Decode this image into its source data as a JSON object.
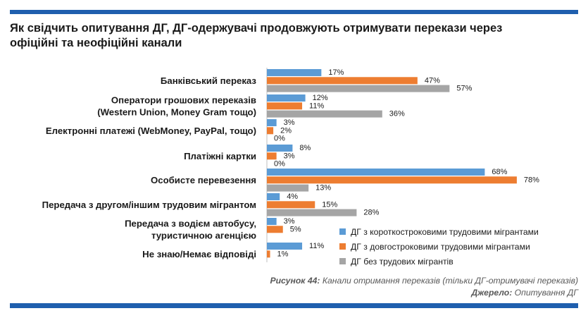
{
  "title": "Як свідчить опитування ДГ, ДГ-одержувачі продовжують отримувати перекази через офіційні та неофіційні канали",
  "caption": {
    "label": "Рисунок 44:",
    "text": "Канали отримання переказів (тільки ДГ-отримувачі переказів)"
  },
  "source": {
    "label": "Джерело:",
    "text": "Опитування ДГ"
  },
  "colors": {
    "short": "#5b9bd5",
    "long": "#ed7d31",
    "none": "#a5a5a5",
    "rule": "#1f5fae"
  },
  "chart_data": {
    "type": "bar",
    "orientation": "horizontal",
    "grid": false,
    "legend_position": "bottom-right",
    "xlim": [
      0,
      100
    ],
    "categories": [
      [
        "Банківський переказ"
      ],
      [
        "Оператори грошових переказів",
        "(Western Union, Money Gram тощо)"
      ],
      [
        "Електронні платежі (WebMoney, PayPal, тощо)"
      ],
      [
        "Платіжні картки"
      ],
      [
        "Особисте перевезення"
      ],
      [
        "Передача з другом/іншим трудовим мігрантом"
      ],
      [
        "Передача з водієм автобусу,",
        "туристичною агенцією"
      ],
      [
        "Не знаю/Немає відповіді"
      ]
    ],
    "series": [
      {
        "name": "ДГ з короткостроковими трудовими мігрантами",
        "values": [
          17,
          12,
          3,
          8,
          68,
          4,
          3,
          11
        ],
        "labels": [
          "17%",
          "12%",
          "3%",
          "8%",
          "68%",
          "4%",
          "3%",
          "11%"
        ]
      },
      {
        "name": "ДГ з довгостроковими трудовими мігрантами",
        "values": [
          47,
          11,
          2,
          3,
          78,
          15,
          5,
          1
        ],
        "labels": [
          "47%",
          "11%",
          "2%",
          "3%",
          "78%",
          "15%",
          "5%",
          "1%"
        ]
      },
      {
        "name": "ДГ без трудових мігрантів",
        "values": [
          57,
          36,
          0,
          0,
          13,
          28,
          null,
          null
        ],
        "labels": [
          "57%",
          "36%",
          "0%",
          "0%",
          "13%",
          "28%",
          null,
          null
        ]
      }
    ]
  }
}
